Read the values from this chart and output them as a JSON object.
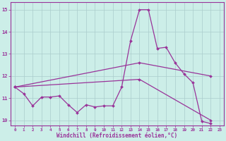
{
  "xlabel": "Windchill (Refroidissement éolien,°C)",
  "bg_color": "#cceee8",
  "line_color": "#993399",
  "grid_color": "#aacccc",
  "xlim": [
    -0.5,
    23.5
  ],
  "ylim": [
    9.75,
    15.35
  ],
  "yticks": [
    10,
    11,
    12,
    13,
    14,
    15
  ],
  "xticks": [
    0,
    1,
    2,
    3,
    4,
    5,
    6,
    7,
    8,
    9,
    10,
    11,
    12,
    13,
    14,
    15,
    16,
    17,
    18,
    19,
    20,
    21,
    22,
    23
  ],
  "line1_x": [
    0,
    1,
    2,
    3,
    4,
    5,
    6,
    7,
    8,
    9,
    10,
    11,
    12,
    13,
    14,
    15,
    16,
    17,
    18,
    19,
    20,
    21,
    22
  ],
  "line1_y": [
    11.5,
    11.2,
    10.65,
    11.05,
    11.05,
    11.1,
    10.7,
    10.35,
    10.7,
    10.6,
    10.65,
    10.65,
    11.5,
    13.6,
    15.0,
    15.0,
    13.25,
    13.3,
    12.6,
    12.1,
    11.7,
    9.95,
    9.85
  ],
  "line2_x": [
    0,
    14,
    22
  ],
  "line2_y": [
    11.5,
    12.6,
    12.0
  ],
  "line3_x": [
    0,
    14,
    22
  ],
  "line3_y": [
    11.5,
    11.85,
    10.0
  ]
}
